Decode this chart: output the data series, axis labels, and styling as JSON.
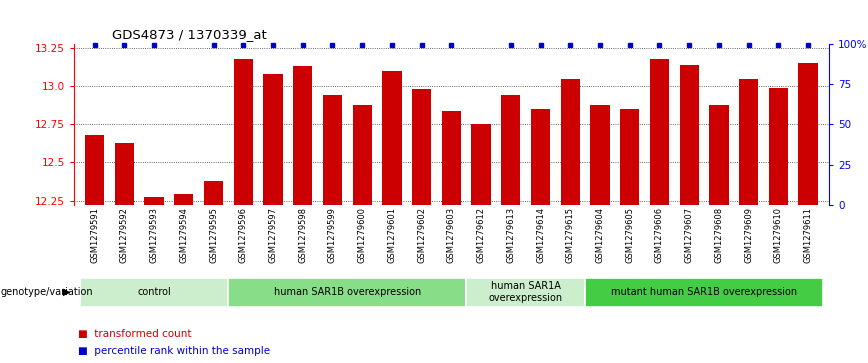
{
  "title": "GDS4873 / 1370339_at",
  "samples": [
    "GSM1279591",
    "GSM1279592",
    "GSM1279593",
    "GSM1279594",
    "GSM1279595",
    "GSM1279596",
    "GSM1279597",
    "GSM1279598",
    "GSM1279599",
    "GSM1279600",
    "GSM1279601",
    "GSM1279602",
    "GSM1279603",
    "GSM1279612",
    "GSM1279613",
    "GSM1279614",
    "GSM1279615",
    "GSM1279604",
    "GSM1279605",
    "GSM1279606",
    "GSM1279607",
    "GSM1279608",
    "GSM1279609",
    "GSM1279610",
    "GSM1279611"
  ],
  "values": [
    12.68,
    12.63,
    12.27,
    12.29,
    12.38,
    13.18,
    13.08,
    13.13,
    12.94,
    12.88,
    13.1,
    12.98,
    12.84,
    12.75,
    12.94,
    12.85,
    13.05,
    12.88,
    12.85,
    13.18,
    13.14,
    12.88,
    13.05,
    12.99,
    13.15
  ],
  "percentile_ranks": [
    1,
    1,
    1,
    0,
    1,
    1,
    1,
    1,
    1,
    1,
    1,
    1,
    1,
    0,
    1,
    1,
    1,
    1,
    1,
    1,
    1,
    1,
    1,
    1,
    1
  ],
  "bar_color": "#cc0000",
  "dot_color": "#0000cc",
  "ylim": [
    12.22,
    13.28
  ],
  "yticks": [
    12.25,
    12.5,
    12.75,
    13.0,
    13.25
  ],
  "right_yticks": [
    0,
    25,
    50,
    75,
    100
  ],
  "groups": [
    {
      "label": "control",
      "start": 0,
      "end": 5,
      "color": "#cceecc"
    },
    {
      "label": "human SAR1B overexpression",
      "start": 5,
      "end": 13,
      "color": "#88dd88"
    },
    {
      "label": "human SAR1A\noverexpression",
      "start": 13,
      "end": 17,
      "color": "#cceecc"
    },
    {
      "label": "mutant human SAR1B overexpression",
      "start": 17,
      "end": 25,
      "color": "#44cc44"
    }
  ],
  "group_label_prefix": "genotype/variation",
  "legend_red": "transformed count",
  "legend_blue": "percentile rank within the sample"
}
